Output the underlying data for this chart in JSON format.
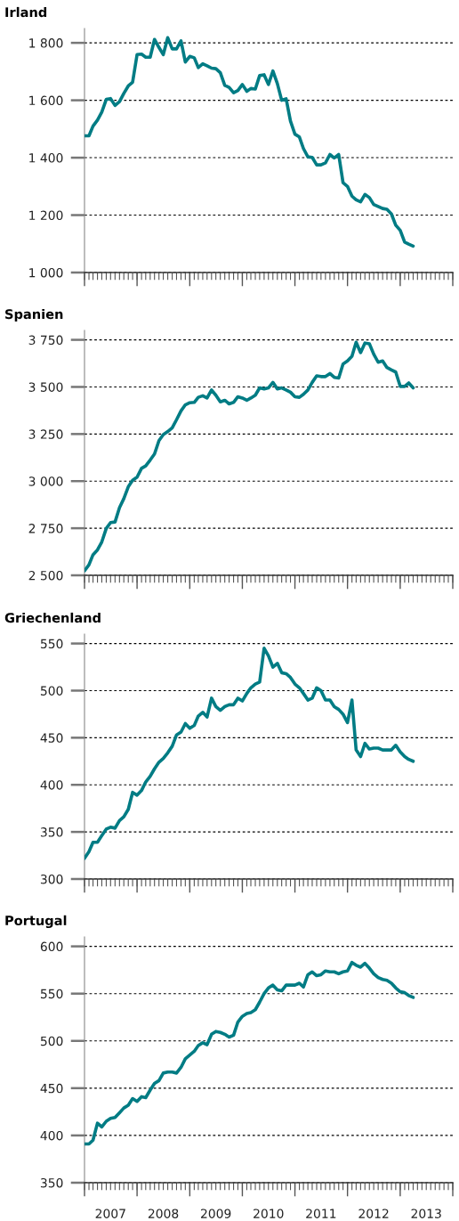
{
  "chart_data": [
    {
      "type": "line",
      "title": "Irland",
      "tick_labels": "y",
      "grid": "y",
      "xlim": [
        "2007-01",
        "2014-01"
      ],
      "xticks": [
        {
          "value": "2007-01",
          "label": null
        },
        {
          "value": "2008-01",
          "label": null
        },
        {
          "value": "2009-01",
          "label": null
        },
        {
          "value": "2010-01",
          "label": null
        },
        {
          "value": "2011-01",
          "label": null
        },
        {
          "value": "2012-01",
          "label": null
        },
        {
          "value": "2013-01",
          "label": null
        },
        {
          "value": "2014-01",
          "label": null
        }
      ],
      "ylim": [
        1000,
        1850
      ],
      "yticks": [
        {
          "value": 1000,
          "label": "1 000"
        },
        {
          "value": 1200,
          "label": "1 200"
        },
        {
          "value": 1400,
          "label": "1 400"
        },
        {
          "value": 1600,
          "label": "1 600"
        },
        {
          "value": 1800,
          "label": "1 800"
        }
      ],
      "x": [
        "2007-01",
        "2007-02",
        "2007-03",
        "2007-04",
        "2007-05",
        "2007-06",
        "2007-07",
        "2007-08",
        "2007-09",
        "2007-10",
        "2007-11",
        "2007-12",
        "2008-01",
        "2008-02",
        "2008-03",
        "2008-04",
        "2008-05",
        "2008-06",
        "2008-07",
        "2008-08",
        "2008-09",
        "2008-10",
        "2008-11",
        "2008-12",
        "2009-01",
        "2009-02",
        "2009-03",
        "2009-04",
        "2009-05",
        "2009-06",
        "2009-07",
        "2009-08",
        "2009-09",
        "2009-10",
        "2009-11",
        "2009-12",
        "2010-01",
        "2010-02",
        "2010-03",
        "2010-04",
        "2010-05",
        "2010-06",
        "2010-07",
        "2010-08",
        "2010-09",
        "2010-10",
        "2010-11",
        "2010-12",
        "2011-01",
        "2011-02",
        "2011-03",
        "2011-04",
        "2011-05",
        "2011-06",
        "2011-07",
        "2011-08",
        "2011-09",
        "2011-10",
        "2011-11",
        "2011-12",
        "2012-01",
        "2012-02",
        "2012-03",
        "2012-04",
        "2012-05",
        "2012-06",
        "2012-07",
        "2012-08",
        "2012-09",
        "2012-10",
        "2012-11",
        "2012-12",
        "2013-01",
        "2013-02",
        "2013-03",
        "2013-04"
      ],
      "series": [
        {
          "color": "#007c84",
          "values": [
            1476,
            1476,
            1510,
            1531,
            1559,
            1603,
            1606,
            1582,
            1595,
            1624,
            1650,
            1663,
            1759,
            1761,
            1750,
            1750,
            1812,
            1784,
            1759,
            1818,
            1779,
            1779,
            1807,
            1733,
            1753,
            1748,
            1714,
            1727,
            1720,
            1712,
            1710,
            1696,
            1652,
            1645,
            1626,
            1634,
            1655,
            1631,
            1641,
            1639,
            1686,
            1689,
            1655,
            1702,
            1658,
            1600,
            1605,
            1528,
            1482,
            1472,
            1432,
            1403,
            1401,
            1375,
            1375,
            1382,
            1411,
            1399,
            1411,
            1313,
            1300,
            1266,
            1253,
            1246,
            1272,
            1261,
            1237,
            1230,
            1223,
            1220,
            1204,
            1165,
            1147,
            1106,
            1099,
            1092
          ]
        }
      ]
    },
    {
      "type": "line",
      "title": "Spanien",
      "tick_labels": "y",
      "grid": "y",
      "xlim": [
        "2007-01",
        "2014-01"
      ],
      "xticks": [
        {
          "value": "2007-01",
          "label": null
        },
        {
          "value": "2008-01",
          "label": null
        },
        {
          "value": "2009-01",
          "label": null
        },
        {
          "value": "2010-01",
          "label": null
        },
        {
          "value": "2011-01",
          "label": null
        },
        {
          "value": "2012-01",
          "label": null
        },
        {
          "value": "2013-01",
          "label": null
        },
        {
          "value": "2014-01",
          "label": null
        }
      ],
      "ylim": [
        2500,
        3800
      ],
      "yticks": [
        {
          "value": 2500,
          "label": "2 500"
        },
        {
          "value": 2750,
          "label": "2 750"
        },
        {
          "value": 3000,
          "label": "3 000"
        },
        {
          "value": 3250,
          "label": "3 250"
        },
        {
          "value": 3500,
          "label": "3 500"
        },
        {
          "value": 3750,
          "label": "3 750"
        }
      ],
      "x": [
        "2007-01",
        "2007-02",
        "2007-03",
        "2007-04",
        "2007-05",
        "2007-06",
        "2007-07",
        "2007-08",
        "2007-09",
        "2007-10",
        "2007-11",
        "2007-12",
        "2008-01",
        "2008-02",
        "2008-03",
        "2008-04",
        "2008-05",
        "2008-06",
        "2008-07",
        "2008-08",
        "2008-09",
        "2008-10",
        "2008-11",
        "2008-12",
        "2009-01",
        "2009-02",
        "2009-03",
        "2009-04",
        "2009-05",
        "2009-06",
        "2009-07",
        "2009-08",
        "2009-09",
        "2009-10",
        "2009-11",
        "2009-12",
        "2010-01",
        "2010-02",
        "2010-03",
        "2010-04",
        "2010-05",
        "2010-06",
        "2010-07",
        "2010-08",
        "2010-09",
        "2010-10",
        "2010-11",
        "2010-12",
        "2011-01",
        "2011-02",
        "2011-03",
        "2011-04",
        "2011-05",
        "2011-06",
        "2011-07",
        "2011-08",
        "2011-09",
        "2011-10",
        "2011-11",
        "2011-12",
        "2012-01",
        "2012-02",
        "2012-03",
        "2012-04",
        "2012-05",
        "2012-06",
        "2012-07",
        "2012-08",
        "2012-09",
        "2012-10",
        "2012-11",
        "2012-12",
        "2013-01",
        "2013-02",
        "2013-03",
        "2013-04"
      ],
      "series": [
        {
          "color": "#007c84",
          "values": [
            2524,
            2556,
            2609,
            2635,
            2677,
            2749,
            2780,
            2783,
            2859,
            2907,
            2970,
            3005,
            3021,
            3068,
            3081,
            3112,
            3144,
            3215,
            3247,
            3263,
            3283,
            3326,
            3373,
            3405,
            3416,
            3418,
            3445,
            3453,
            3441,
            3484,
            3456,
            3421,
            3429,
            3410,
            3418,
            3448,
            3441,
            3429,
            3441,
            3456,
            3495,
            3489,
            3495,
            3524,
            3489,
            3495,
            3484,
            3472,
            3448,
            3445,
            3461,
            3484,
            3524,
            3559,
            3555,
            3555,
            3571,
            3551,
            3547,
            3622,
            3638,
            3663,
            3737,
            3682,
            3733,
            3729,
            3674,
            3631,
            3638,
            3603,
            3590,
            3579,
            3503,
            3503,
            3521,
            3495
          ]
        }
      ]
    },
    {
      "type": "line",
      "title": "Griechenland",
      "tick_labels": "y",
      "grid": "y",
      "xlim": [
        "2007-01",
        "2014-01"
      ],
      "xticks": [
        {
          "value": "2007-01",
          "label": null
        },
        {
          "value": "2008-01",
          "label": null
        },
        {
          "value": "2009-01",
          "label": null
        },
        {
          "value": "2010-01",
          "label": null
        },
        {
          "value": "2011-01",
          "label": null
        },
        {
          "value": "2012-01",
          "label": null
        },
        {
          "value": "2013-01",
          "label": null
        },
        {
          "value": "2014-01",
          "label": null
        }
      ],
      "ylim": [
        300,
        560
      ],
      "yticks": [
        300,
        350,
        400,
        450,
        500,
        550
      ],
      "x": [
        "2007-01",
        "2007-02",
        "2007-03",
        "2007-04",
        "2007-05",
        "2007-06",
        "2007-07",
        "2007-08",
        "2007-09",
        "2007-10",
        "2007-11",
        "2007-12",
        "2008-01",
        "2008-02",
        "2008-03",
        "2008-04",
        "2008-05",
        "2008-06",
        "2008-07",
        "2008-08",
        "2008-09",
        "2008-10",
        "2008-11",
        "2008-12",
        "2009-01",
        "2009-02",
        "2009-03",
        "2009-04",
        "2009-05",
        "2009-06",
        "2009-07",
        "2009-08",
        "2009-09",
        "2009-10",
        "2009-11",
        "2009-12",
        "2010-01",
        "2010-02",
        "2010-03",
        "2010-04",
        "2010-05",
        "2010-06",
        "2010-07",
        "2010-08",
        "2010-09",
        "2010-10",
        "2010-11",
        "2010-12",
        "2011-01",
        "2011-02",
        "2011-03",
        "2011-04",
        "2011-05",
        "2011-06",
        "2011-07",
        "2011-08",
        "2011-09",
        "2011-10",
        "2011-11",
        "2011-12",
        "2012-01",
        "2012-02",
        "2012-03",
        "2012-04",
        "2012-05",
        "2012-06",
        "2012-07",
        "2012-08",
        "2012-09",
        "2012-10",
        "2012-11",
        "2012-12",
        "2013-01",
        "2013-02",
        "2013-03",
        "2013-04"
      ],
      "series": [
        {
          "color": "#007c84",
          "values": [
            322,
            329,
            339,
            339,
            346,
            353,
            355,
            354,
            362,
            366,
            374,
            392,
            389,
            394,
            403,
            409,
            417,
            424,
            428,
            434,
            441,
            453,
            456,
            465,
            460,
            463,
            473,
            477,
            472,
            492,
            483,
            479,
            483,
            485,
            485,
            492,
            489,
            497,
            503,
            507,
            509,
            545,
            537,
            525,
            529,
            519,
            518,
            514,
            507,
            503,
            497,
            490,
            492,
            503,
            500,
            490,
            490,
            483,
            480,
            475,
            466,
            490,
            437,
            430,
            444,
            438,
            439,
            439,
            437,
            437,
            437,
            442,
            435,
            430,
            427,
            425
          ]
        }
      ]
    },
    {
      "type": "line",
      "title": "Portugal",
      "grid": "y",
      "xlim": [
        "2007-01",
        "2014-01"
      ],
      "xticks": [
        {
          "value": "2007-01",
          "label": null
        },
        {
          "value": "2008-01",
          "label": null
        },
        {
          "value": "2009-01",
          "label": null
        },
        {
          "value": "2010-01",
          "label": null
        },
        {
          "value": "2011-01",
          "label": null
        },
        {
          "value": "2012-01",
          "label": null
        },
        {
          "value": "2013-01",
          "label": null
        },
        {
          "value": "2014-01",
          "label": null
        },
        {
          "value": "2007-07",
          "label": "2007"
        },
        {
          "value": "2008-07",
          "label": "2008"
        },
        {
          "value": "2009-07",
          "label": "2009"
        },
        {
          "value": "2010-07",
          "label": "2010"
        },
        {
          "value": "2011-07",
          "label": "2011"
        },
        {
          "value": "2012-07",
          "label": "2012"
        },
        {
          "value": "2013-07",
          "label": "2013"
        }
      ],
      "ylim": [
        350,
        610
      ],
      "yticks": [
        350,
        400,
        450,
        500,
        550,
        600
      ],
      "x": [
        "2007-01",
        "2007-02",
        "2007-03",
        "2007-04",
        "2007-05",
        "2007-06",
        "2007-07",
        "2007-08",
        "2007-09",
        "2007-10",
        "2007-11",
        "2007-12",
        "2008-01",
        "2008-02",
        "2008-03",
        "2008-04",
        "2008-05",
        "2008-06",
        "2008-07",
        "2008-08",
        "2008-09",
        "2008-10",
        "2008-11",
        "2008-12",
        "2009-01",
        "2009-02",
        "2009-03",
        "2009-04",
        "2009-05",
        "2009-06",
        "2009-07",
        "2009-08",
        "2009-09",
        "2009-10",
        "2009-11",
        "2009-12",
        "2010-01",
        "2010-02",
        "2010-03",
        "2010-04",
        "2010-05",
        "2010-06",
        "2010-07",
        "2010-08",
        "2010-09",
        "2010-10",
        "2010-11",
        "2010-12",
        "2011-01",
        "2011-02",
        "2011-03",
        "2011-04",
        "2011-05",
        "2011-06",
        "2011-07",
        "2011-08",
        "2011-09",
        "2011-10",
        "2011-11",
        "2011-12",
        "2012-01",
        "2012-02",
        "2012-03",
        "2012-04",
        "2012-05",
        "2012-06",
        "2012-07",
        "2012-08",
        "2012-09",
        "2012-10",
        "2012-11",
        "2012-12",
        "2013-01",
        "2013-02",
        "2013-03",
        "2013-04"
      ],
      "series": [
        {
          "color": "#007c84",
          "values": [
            391,
            391,
            395,
            413,
            409,
            415,
            418,
            419,
            424,
            429,
            432,
            439,
            436,
            441,
            440,
            448,
            455,
            458,
            466,
            467,
            467,
            466,
            472,
            481,
            485,
            489,
            495,
            498,
            496,
            507,
            510,
            509,
            507,
            504,
            506,
            520,
            526,
            529,
            530,
            533,
            541,
            550,
            556,
            559,
            554,
            553,
            559,
            559,
            559,
            561,
            557,
            570,
            573,
            569,
            570,
            574,
            573,
            573,
            571,
            573,
            574,
            583,
            580,
            578,
            582,
            577,
            571,
            567,
            565,
            564,
            561,
            556,
            552,
            551,
            548,
            546
          ]
        }
      ]
    }
  ]
}
